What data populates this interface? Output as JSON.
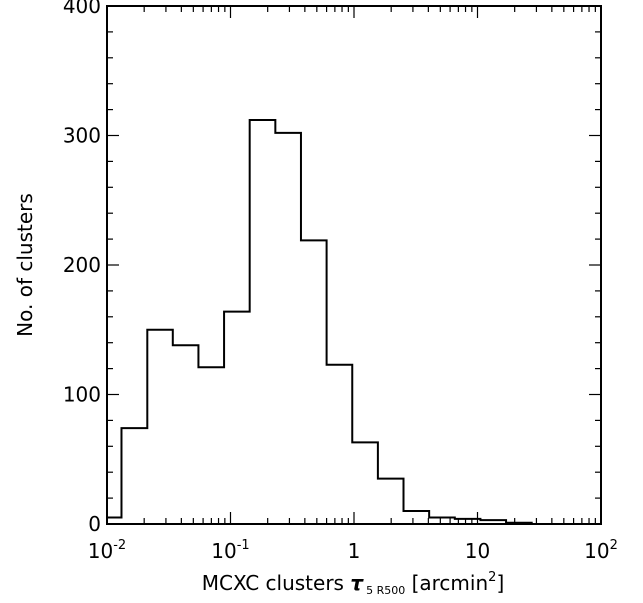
{
  "chart_data": {
    "type": "bar",
    "title": "",
    "xlabel": {
      "prefix": "MCXC clusters ",
      "symbol": "τ",
      "subscript": "5 R500",
      "unit_open": " [arcmin",
      "unit_sup": "2",
      "unit_close": "]"
    },
    "ylabel": "No. of clusters",
    "xscale": "log",
    "xlim": [
      0.01,
      100
    ],
    "ylim": [
      0,
      400
    ],
    "xticks": [
      {
        "value": 0.01,
        "base": "10",
        "exp": "-2"
      },
      {
        "value": 0.1,
        "base": "10",
        "exp": "-1"
      },
      {
        "value": 1,
        "base": "1",
        "exp": ""
      },
      {
        "value": 10,
        "base": "10",
        "exp": ""
      },
      {
        "value": 100,
        "base": "10",
        "exp": "2"
      }
    ],
    "yticks": [
      {
        "value": 0,
        "label": "0"
      },
      {
        "value": 100,
        "label": "100"
      },
      {
        "value": 200,
        "label": "200"
      },
      {
        "value": 300,
        "label": "300"
      },
      {
        "value": 400,
        "label": "400"
      }
    ],
    "bin_edges": [
      0.0081,
      0.0131,
      0.0212,
      0.0341,
      0.055,
      0.0887,
      0.143,
      0.2307,
      0.372,
      0.6,
      0.968,
      1.561,
      2.517,
      4.06,
      6.55,
      10.56,
      17.03,
      27.47
    ],
    "counts": [
      5,
      74,
      150,
      138,
      121,
      164,
      312,
      302,
      219,
      123,
      63,
      35,
      10,
      5,
      4,
      3,
      1
    ]
  }
}
